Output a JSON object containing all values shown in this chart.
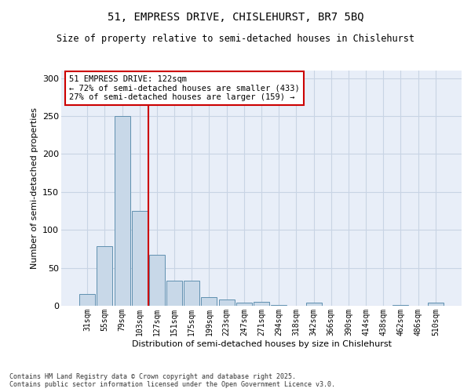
{
  "title1": "51, EMPRESS DRIVE, CHISLEHURST, BR7 5BQ",
  "title2": "Size of property relative to semi-detached houses in Chislehurst",
  "xlabel": "Distribution of semi-detached houses by size in Chislehurst",
  "ylabel": "Number of semi-detached properties",
  "categories": [
    "31sqm",
    "55sqm",
    "79sqm",
    "103sqm",
    "127sqm",
    "151sqm",
    "175sqm",
    "199sqm",
    "223sqm",
    "247sqm",
    "271sqm",
    "294sqm",
    "318sqm",
    "342sqm",
    "366sqm",
    "390sqm",
    "414sqm",
    "438sqm",
    "462sqm",
    "486sqm",
    "510sqm"
  ],
  "values": [
    15,
    79,
    250,
    125,
    67,
    33,
    33,
    11,
    8,
    4,
    5,
    1,
    0,
    4,
    0,
    0,
    0,
    0,
    1,
    0,
    4
  ],
  "bar_color": "#c8d8e8",
  "bar_edge_color": "#6090b0",
  "property_line_x": 3.5,
  "annotation_text": "51 EMPRESS DRIVE: 122sqm\n← 72% of semi-detached houses are smaller (433)\n27% of semi-detached houses are larger (159) →",
  "annotation_box_color": "#ffffff",
  "annotation_box_edge_color": "#cc0000",
  "vline_color": "#cc0000",
  "grid_color": "#c8d4e4",
  "background_color": "#e8eef8",
  "footer_text": "Contains HM Land Registry data © Crown copyright and database right 2025.\nContains public sector information licensed under the Open Government Licence v3.0.",
  "ylim": [
    0,
    310
  ],
  "yticks": [
    0,
    50,
    100,
    150,
    200,
    250,
    300
  ]
}
